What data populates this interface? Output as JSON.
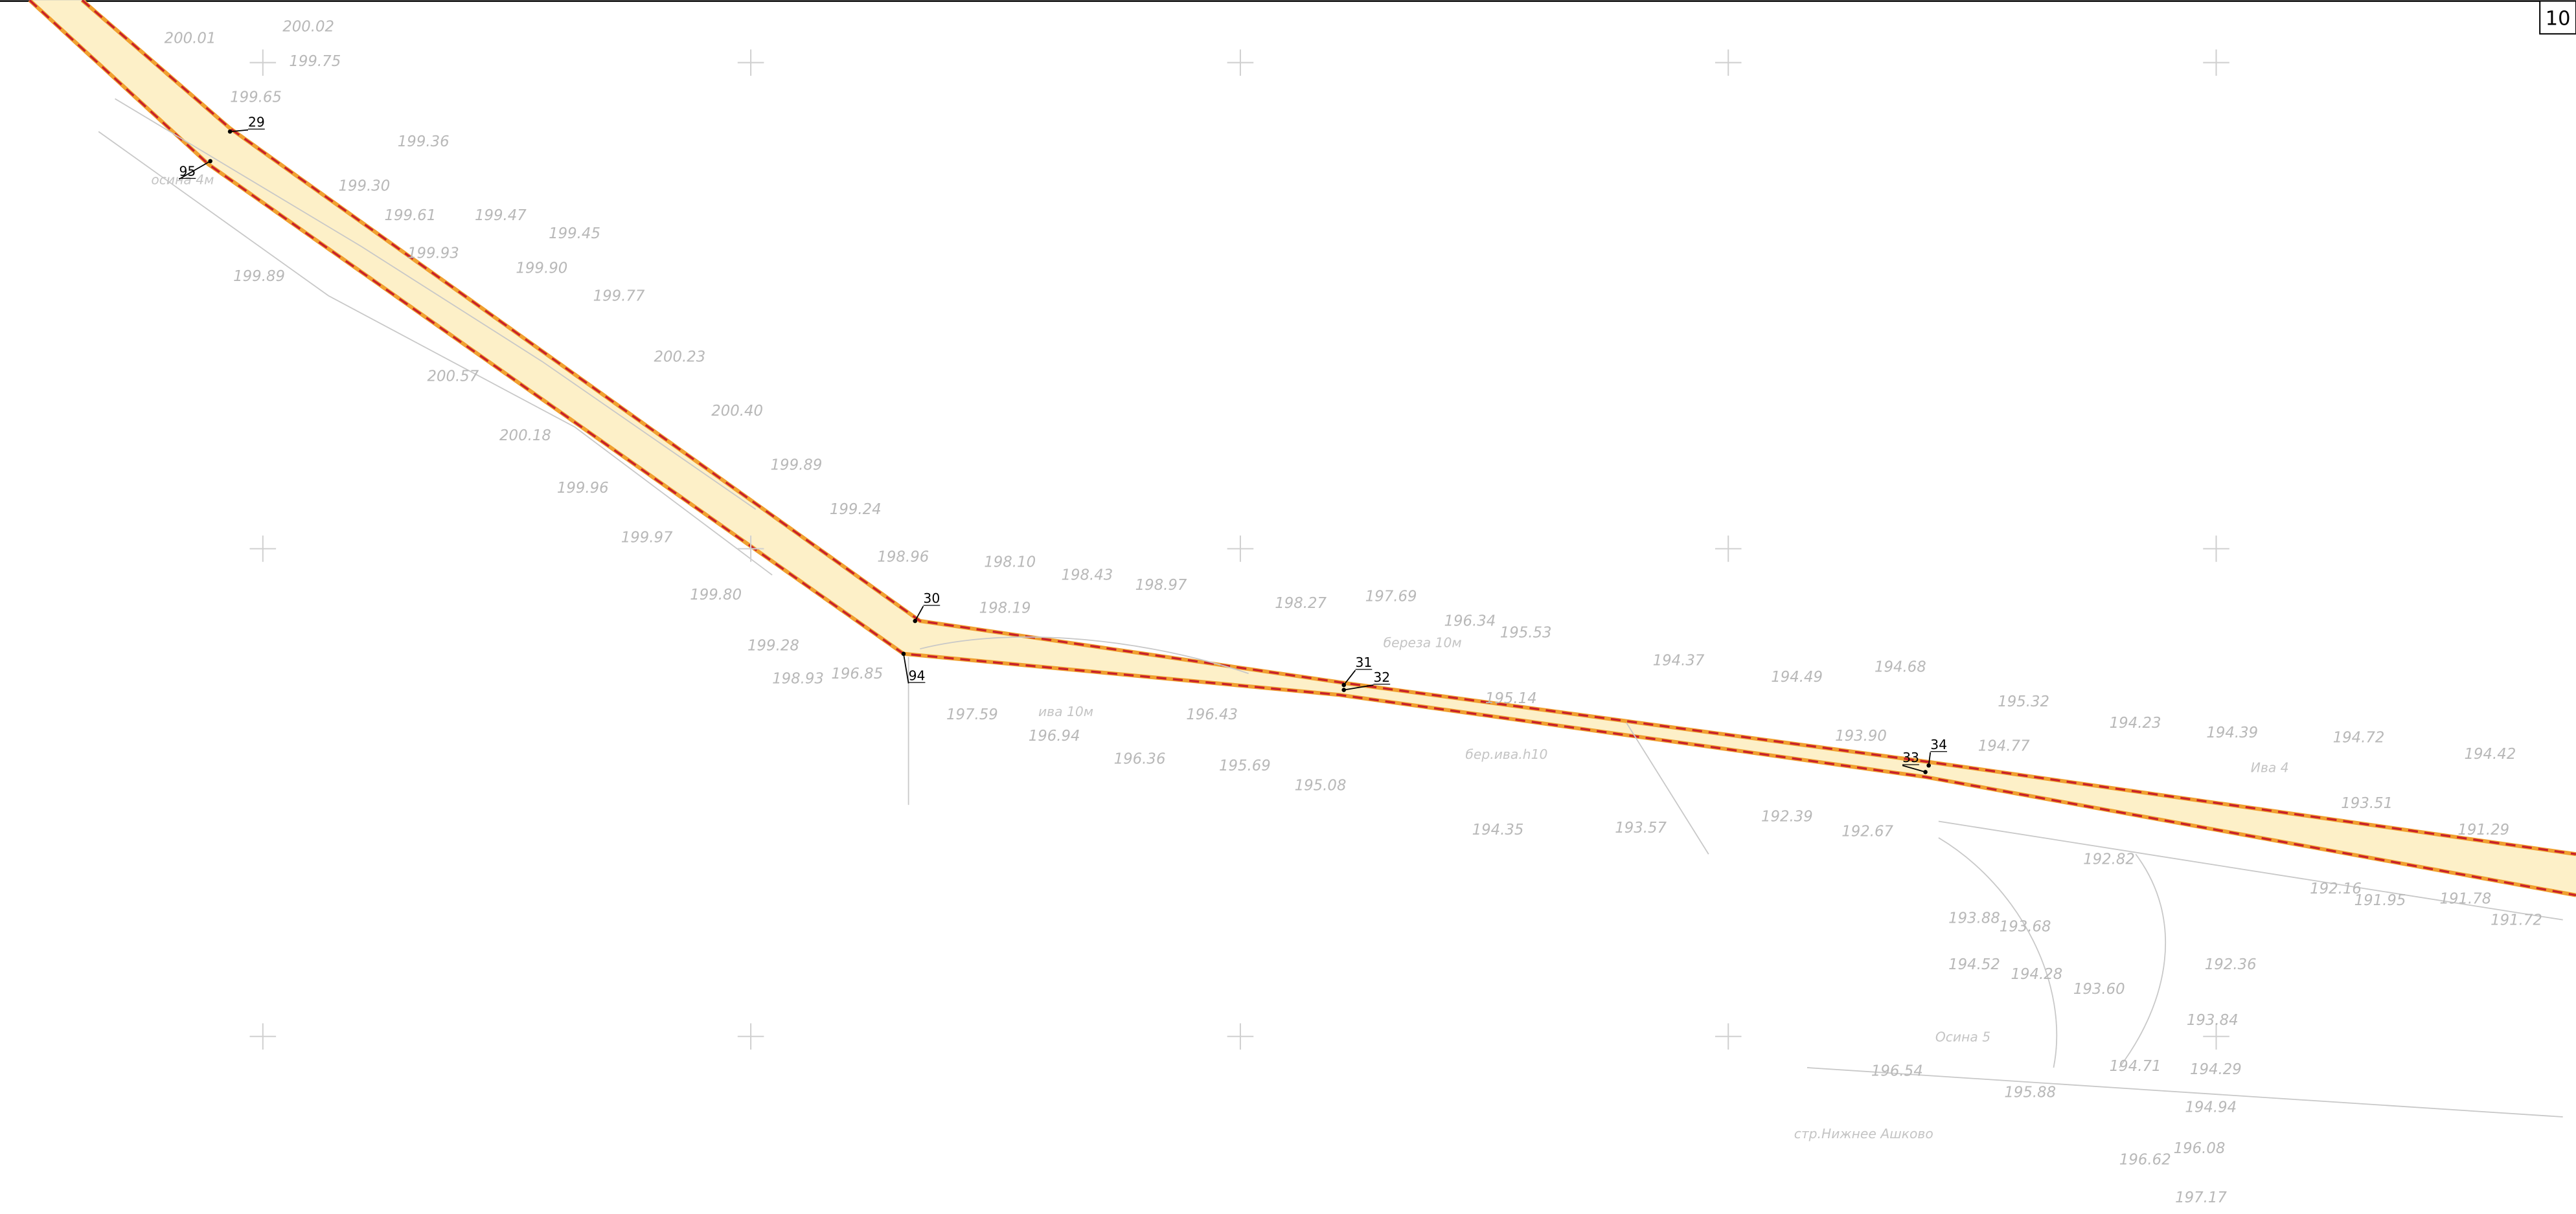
{
  "sheet_number": "10",
  "point_labels": [
    "29",
    "95",
    "30",
    "94",
    "31",
    "32",
    "33",
    "34"
  ],
  "elevations": [
    "200.02",
    "200.01",
    "199.75",
    "199.65",
    "199.36",
    "199.30",
    "199.61",
    "199.47",
    "199.45",
    "199.93",
    "199.90",
    "199.89",
    "199.77",
    "200.23",
    "200.40",
    "200.57",
    "200.18",
    "199.89",
    "199.24",
    "199.96",
    "199.97",
    "198.96",
    "198.10",
    "198.43",
    "198.97",
    "198.19",
    "199.80",
    "199.28",
    "198.93",
    "196.85",
    "197.59",
    "197.69",
    "196.34",
    "195.53",
    "198.27",
    "196.43",
    "196.94",
    "196.36",
    "195.69",
    "195.08",
    "195.14",
    "194.49",
    "194.68",
    "194.37",
    "193.90",
    "195.32",
    "194.23",
    "194.39",
    "194.72",
    "194.42",
    "194.77",
    "193.51",
    "191.29",
    "192.82",
    "192.16",
    "191.95",
    "191.78",
    "191.72",
    "192.36",
    "193.84",
    "194.29",
    "194.94",
    "196.08",
    "196.62",
    "197.17",
    "196.54",
    "193.60",
    "194.28",
    "194.52",
    "193.68",
    "193.88",
    "192.67",
    "193.57",
    "194.35",
    "192.39",
    "195.88",
    "194.71"
  ],
  "notes": [
    "стр.Нижнее Ашково",
    "бер.ива.h10",
    "береза 10м",
    "ива 10м",
    "Ива 4",
    "Осина 5",
    "осина 4м"
  ]
}
